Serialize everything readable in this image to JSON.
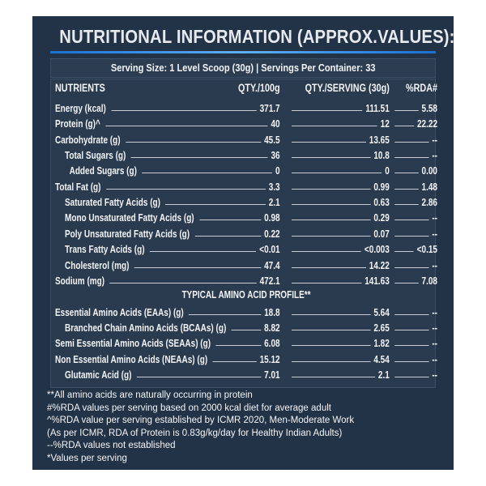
{
  "header": {
    "title": "NUTRITIONAL INFORMATION (APPROX.VALUES):",
    "serving_info": "Serving Size: 1 Level Scoop (30g)  |  Servings Per Container: 33"
  },
  "table": {
    "columns": [
      "NUTRIENTS",
      "QTY./100g",
      "QTY./SERVING (30g)",
      "%RDA#"
    ],
    "rows": [
      [
        "Energy (kcal)",
        "371.7",
        "111.51",
        "5.58"
      ],
      [
        "Protein (g)^",
        "40",
        "12",
        "22.22"
      ],
      [
        "Carbohydrate (g)",
        "45.5",
        "13.65",
        "--"
      ],
      [
        "Total Sugars (g)",
        "36",
        "10.8",
        "--"
      ],
      [
        "Added Sugars (g)",
        "0",
        "0",
        "0.00"
      ],
      [
        "Total Fat (g)",
        "3.3",
        "0.99",
        "1.48"
      ],
      [
        "Saturated Fatty Acids (g)",
        "2.1",
        "0.63",
        "2.86"
      ],
      [
        "Mono Unsaturated Fatty Acids (g)",
        "0.98",
        "0.29",
        "--"
      ],
      [
        "Poly Unsaturated Fatty Acids (g)",
        "0.22",
        "0.07",
        "--"
      ],
      [
        "Trans Fatty Acids (g)",
        "<0.01",
        "<0.003",
        "<0.15"
      ],
      [
        "Cholesterol (mg)",
        "47.4",
        "14.22",
        "--"
      ],
      [
        "Sodium (mg)",
        "472.1",
        "141.63",
        "7.08"
      ]
    ],
    "amino_section": {
      "title": "TYPICAL AMINO ACID PROFILE**",
      "rows": [
        [
          "Essential Amino Acids (EAAs) (g)",
          "18.8",
          "5.64",
          "--"
        ],
        [
          "Branched Chain Amino Acids (BCAAs) (g)",
          "8.82",
          "2.65",
          "--"
        ],
        [
          "Semi Essential Amino Acids (SEAAs) (g)",
          "6.08",
          "1.82",
          "--"
        ],
        [
          "Non Essential Amino Acids (NEAAs) (g)",
          "15.12",
          "4.54",
          "--"
        ],
        [
          "Glutamic Acid (g)",
          "7.01",
          "2.1",
          "--"
        ]
      ]
    }
  },
  "footnotes": [
    "**All amino acids are naturally occurring in protein",
    "#%RDA values per serving based on 2000 kcal diet for average adult",
    "^%RDA value per serving established by ICMR 2020, Men-Moderate Work",
    "(As per ICMR, RDA of Protein is 0.83g/kg/day for Healthy Indian Adults)",
    "--%RDA values not established",
    "*Values per serving"
  ]
}
